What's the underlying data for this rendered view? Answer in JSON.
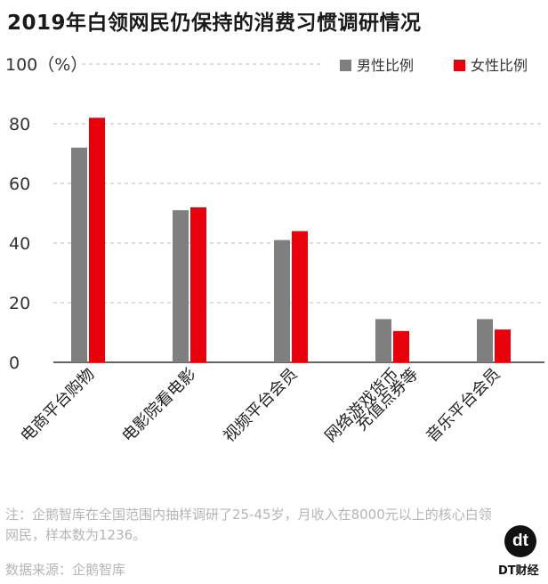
{
  "title": "2019年白领网民仍保持的消费习惯调研情况",
  "note": "注：企鹅智库在全国范围内抽样调研了25-45岁，月收入在8000元以上的核心白领网民，样本数为1236。",
  "source": "数据来源：企鹅智库",
  "logo": {
    "mark": "dt",
    "text": "DT财经"
  },
  "chart_data": {
    "type": "bar",
    "ylabel": "100（%）",
    "ylim": [
      0,
      100
    ],
    "yticks": [
      "0",
      "20",
      "40",
      "60",
      "80"
    ],
    "grid": true,
    "legend_position": "top-right",
    "categories": [
      "电商平台购物",
      "电影院看电影",
      "视频平台会员",
      "网络游戏货币充值点券等",
      "音乐平台会员"
    ],
    "category_lines": [
      [
        "电商平台购物"
      ],
      [
        "电影院看电影"
      ],
      [
        "视频平台会员"
      ],
      [
        "网络游戏货币",
        "充值点券等"
      ],
      [
        "音乐平台会员"
      ]
    ],
    "series": [
      {
        "name": "男性比例",
        "color": "#7f7f7f",
        "values": [
          72,
          51,
          41,
          14.5,
          14.5
        ]
      },
      {
        "name": "女性比例",
        "color": "#e8000b",
        "values": [
          82,
          52,
          44,
          10.5,
          11
        ]
      }
    ]
  }
}
